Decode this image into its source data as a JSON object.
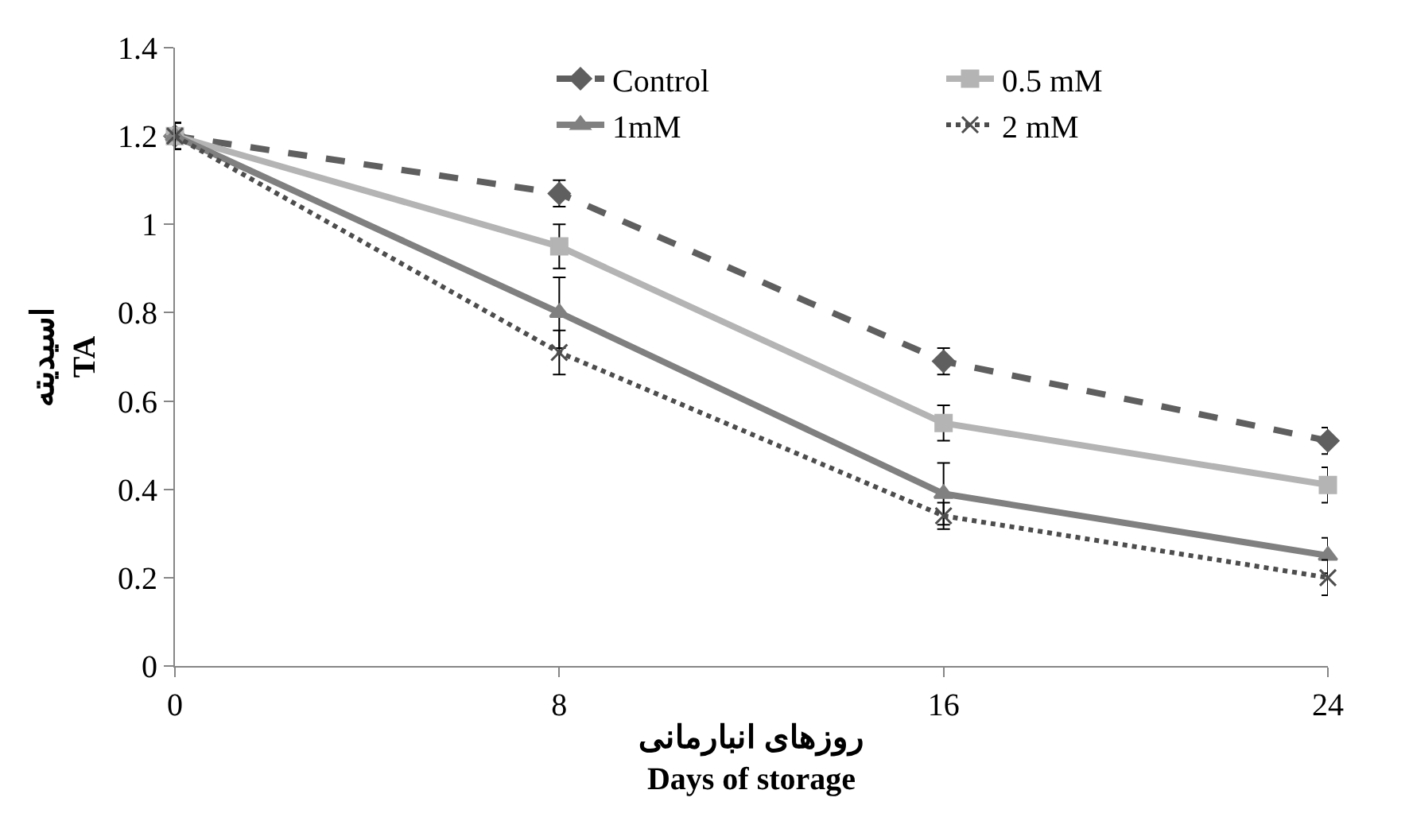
{
  "chart_data": {
    "type": "line",
    "xlabel": "روزهای انبارمانی\nDays of storage",
    "ylabel": "اسیدیته\nTA",
    "x": [
      0,
      8,
      16,
      24
    ],
    "xlim": [
      0,
      24
    ],
    "xticks": [
      0,
      8,
      16,
      24
    ],
    "ylim": [
      0,
      1.4
    ],
    "yticks": [
      0,
      0.2,
      0.4,
      0.6,
      0.8,
      1,
      1.2,
      1.4
    ],
    "legend": "top right",
    "series": [
      {
        "name": "Control",
        "color": "#5f5f5f",
        "marker": "diamond",
        "line_style": "dashed",
        "values": [
          1.2,
          1.07,
          0.69,
          0.51
        ],
        "errors": [
          0.03,
          0.03,
          0.03,
          0.03
        ]
      },
      {
        "name": "0.5 mM",
        "color": "#b4b4b4",
        "marker": "square",
        "line_style": "solid",
        "values": [
          1.2,
          0.95,
          0.55,
          0.41
        ],
        "errors": [
          0.03,
          0.05,
          0.04,
          0.04
        ]
      },
      {
        "name": "1mM",
        "color": "#808080",
        "marker": "triangle",
        "line_style": "solid",
        "values": [
          1.2,
          0.8,
          0.39,
          0.25
        ],
        "errors": [
          0.03,
          0.08,
          0.07,
          0.04
        ]
      },
      {
        "name": "2 mM",
        "color": "#4d4d4d",
        "marker": "cross",
        "line_style": "dotted",
        "values": [
          1.2,
          0.71,
          0.34,
          0.2
        ],
        "errors": [
          0.03,
          0.05,
          0.03,
          0.04
        ]
      }
    ]
  }
}
